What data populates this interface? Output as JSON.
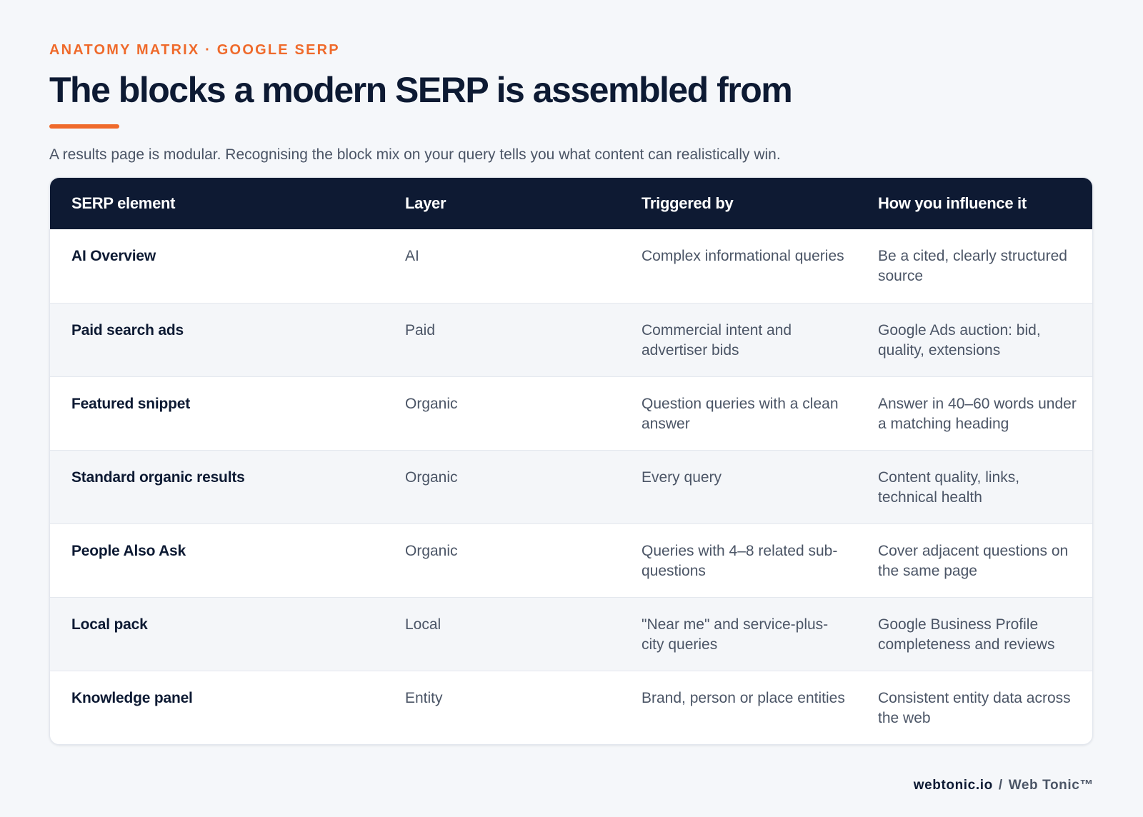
{
  "header": {
    "eyebrow": "ANATOMY MATRIX · GOOGLE SERP",
    "title": "The blocks a modern SERP is assembled from",
    "subtitle": "A results page is modular. Recognising the block mix on your query tells you what content can realistically win.",
    "accent_color": "#ef6a2b"
  },
  "table": {
    "header_bg": "#0e1a33",
    "columns": [
      "SERP element",
      "Layer",
      "Triggered by",
      "How you influence it"
    ],
    "rows": [
      {
        "element": "AI Overview",
        "layer": "AI",
        "triggered_by": "Complex informational queries",
        "influence": "Be a cited, clearly structured source"
      },
      {
        "element": "Paid search ads",
        "layer": "Paid",
        "triggered_by": "Commercial intent and advertiser bids",
        "influence": "Google Ads auction: bid, quality, extensions"
      },
      {
        "element": "Featured snippet",
        "layer": "Organic",
        "triggered_by": "Question queries with a clean answer",
        "influence": "Answer in 40–60 words under a matching heading"
      },
      {
        "element": "Standard organic results",
        "layer": "Organic",
        "triggered_by": "Every query",
        "influence": "Content quality, links, technical health"
      },
      {
        "element": "People Also Ask",
        "layer": "Organic",
        "triggered_by": "Queries with 4–8 related sub-questions",
        "influence": "Cover adjacent questions on the same page"
      },
      {
        "element": "Local pack",
        "layer": "Local",
        "triggered_by": "\"Near me\" and service-plus-city queries",
        "influence": "Google Business Profile completeness and reviews"
      },
      {
        "element": "Knowledge panel",
        "layer": "Entity",
        "triggered_by": "Brand, person or place entities",
        "influence": "Consistent entity data across the web"
      }
    ]
  },
  "footer": {
    "domain": "webtonic.io",
    "separator": "/",
    "brand": "Web Tonic™"
  }
}
